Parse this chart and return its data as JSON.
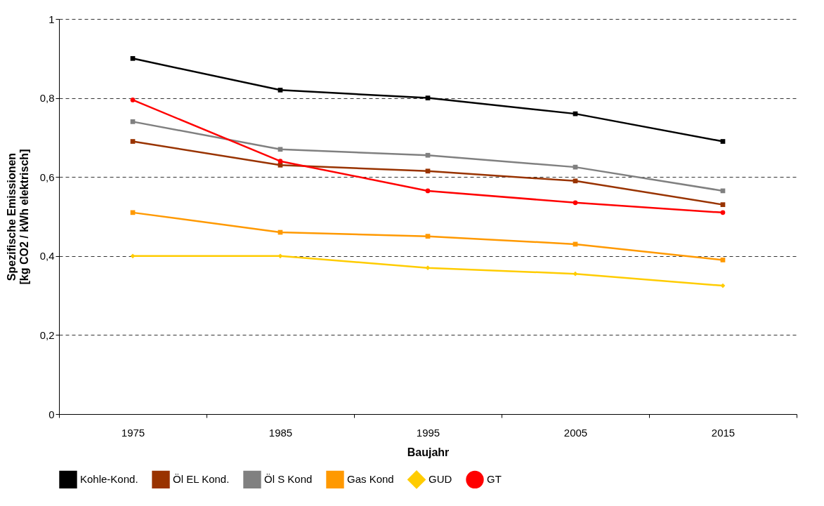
{
  "chart_data": {
    "type": "line",
    "xlabel": "Baujahr",
    "ylabel": "Spezifische Emissionen [kg CO2 / kWh elektrisch]",
    "categories": [
      "1975",
      "1985",
      "1995",
      "2005",
      "2015"
    ],
    "series": [
      {
        "name": "Kohle-Kond.",
        "color": "#000000",
        "marker": "square",
        "values": [
          0.9,
          0.82,
          0.8,
          0.76,
          0.69
        ]
      },
      {
        "name": "Öl EL Kond.",
        "color": "#993300",
        "marker": "square",
        "values": [
          0.69,
          0.63,
          0.615,
          0.59,
          0.53
        ]
      },
      {
        "name": "Öl S Kond",
        "color": "#808080",
        "marker": "square",
        "values": [
          0.74,
          0.67,
          0.655,
          0.625,
          0.565
        ]
      },
      {
        "name": "Gas Kond",
        "color": "#ff9900",
        "marker": "square",
        "values": [
          0.51,
          0.46,
          0.45,
          0.43,
          0.39
        ]
      },
      {
        "name": "GUD",
        "color": "#ffcc00",
        "marker": "diamond",
        "values": [
          0.4,
          0.4,
          0.37,
          0.355,
          0.325
        ]
      },
      {
        "name": "GT",
        "color": "#ff0000",
        "marker": "circle",
        "values": [
          0.795,
          0.64,
          0.565,
          0.535,
          0.51
        ]
      }
    ],
    "ylim": [
      0,
      1
    ],
    "yticks": [
      0,
      {
        "value": 0.2,
        "label": "0,2"
      },
      {
        "value": 0.4,
        "label": "0,4"
      },
      {
        "value": 0.6,
        "label": "0,6"
      },
      {
        "value": 0.8,
        "label": "0,8"
      },
      1
    ],
    "grid": "y",
    "line_style": "solid",
    "legend": "bottom"
  }
}
